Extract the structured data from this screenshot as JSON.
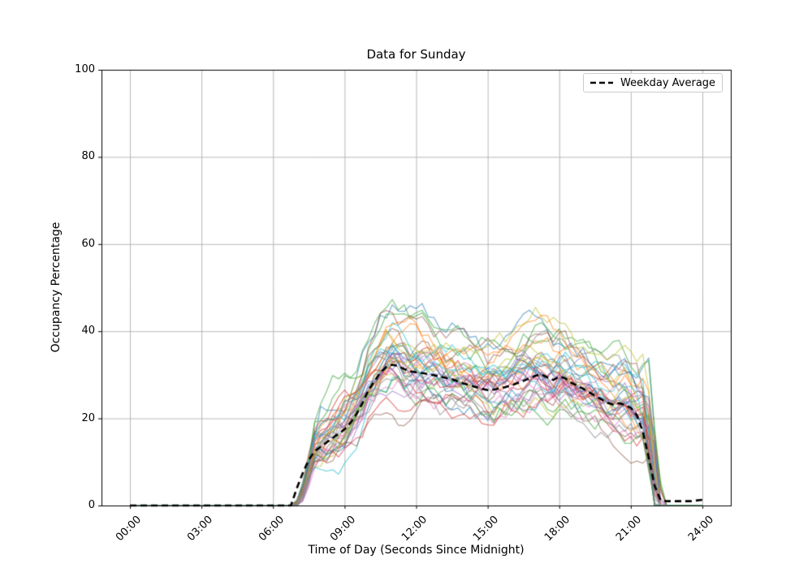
{
  "figure": {
    "background": "#ffffff"
  },
  "chart_data": {
    "type": "line",
    "title": "Data for Sunday",
    "xlabel": "Time of Day (Seconds Since Midnight)",
    "ylabel": "Occupancy Percentage",
    "xlim_hours": [
      -1.2,
      25.2
    ],
    "ylim": [
      0,
      100
    ],
    "grid": true,
    "grid_color": "#b0b0b0",
    "spine_color": "#000000",
    "x_ticks": [
      {
        "hour": 0,
        "label": "00:00"
      },
      {
        "hour": 3,
        "label": "03:00"
      },
      {
        "hour": 6,
        "label": "06:00"
      },
      {
        "hour": 9,
        "label": "09:00"
      },
      {
        "hour": 12,
        "label": "12:00"
      },
      {
        "hour": 15,
        "label": "15:00"
      },
      {
        "hour": 18,
        "label": "18:00"
      },
      {
        "hour": 21,
        "label": "21:00"
      },
      {
        "hour": 24,
        "label": "24:00"
      }
    ],
    "y_ticks": [
      0,
      20,
      40,
      60,
      80,
      100
    ],
    "legend": {
      "label": "Weekday Average",
      "position": "upper-right",
      "line_color": "#000000",
      "line_style": "dashed"
    },
    "average_series": {
      "name": "Weekday Average",
      "color": "#000000",
      "dash": [
        8,
        5
      ],
      "width": 2.6,
      "points": [
        [
          0,
          0
        ],
        [
          6.75,
          0
        ],
        [
          7,
          4
        ],
        [
          7.25,
          7.5
        ],
        [
          7.5,
          10.5
        ],
        [
          7.75,
          12.5
        ],
        [
          8,
          13.5
        ],
        [
          8.25,
          14.5
        ],
        [
          8.5,
          15.5
        ],
        [
          8.75,
          16.5
        ],
        [
          9,
          17.5
        ],
        [
          9.25,
          19
        ],
        [
          9.5,
          21
        ],
        [
          9.75,
          23.5
        ],
        [
          10,
          26.5
        ],
        [
          10.25,
          28.5
        ],
        [
          10.5,
          30.5
        ],
        [
          10.75,
          31.8
        ],
        [
          11,
          32.3
        ],
        [
          11.25,
          32
        ],
        [
          11.5,
          31.3
        ],
        [
          11.75,
          30.8
        ],
        [
          12,
          30.6
        ],
        [
          12.25,
          30.4
        ],
        [
          12.5,
          30.2
        ],
        [
          12.75,
          29.9
        ],
        [
          13,
          29.6
        ],
        [
          13.25,
          29.3
        ],
        [
          13.5,
          29
        ],
        [
          13.75,
          28.5
        ],
        [
          14,
          28
        ],
        [
          14.25,
          27.6
        ],
        [
          14.5,
          27.2
        ],
        [
          14.75,
          26.8
        ],
        [
          15,
          26.5
        ],
        [
          15.25,
          26.6
        ],
        [
          15.5,
          26.9
        ],
        [
          15.75,
          27.2
        ],
        [
          16,
          27.6
        ],
        [
          16.25,
          28.1
        ],
        [
          16.5,
          28.6
        ],
        [
          16.75,
          29.2
        ],
        [
          17,
          29.8
        ],
        [
          17.25,
          30.1
        ],
        [
          17.5,
          29.4
        ],
        [
          17.75,
          28.8
        ],
        [
          18,
          29.6
        ],
        [
          18.25,
          29.2
        ],
        [
          18.5,
          28.2
        ],
        [
          18.75,
          27.5
        ],
        [
          19,
          26.8
        ],
        [
          19.25,
          26
        ],
        [
          19.5,
          25.2
        ],
        [
          19.75,
          24.4
        ],
        [
          20,
          23.6
        ],
        [
          20.25,
          23.2
        ],
        [
          20.5,
          23.5
        ],
        [
          20.75,
          23.1
        ],
        [
          21,
          22.4
        ],
        [
          21.25,
          20.8
        ],
        [
          21.5,
          17
        ],
        [
          21.75,
          11
        ],
        [
          22,
          4.5
        ],
        [
          22.25,
          1.2
        ],
        [
          22.5,
          1
        ],
        [
          23,
          1
        ],
        [
          23.5,
          1
        ],
        [
          24,
          1.3
        ]
      ]
    },
    "samples": {
      "description": "Individual Sunday occupancy traces (semi-transparent, approximated)",
      "count": 40,
      "alpha": 0.55,
      "width": 1.3,
      "seed": 11,
      "step_hours": 0.25,
      "rise_start_hour": 6.8,
      "drop_end_hour": 22.2,
      "value_range": [
        0,
        53
      ],
      "colors": [
        "#1f77b4",
        "#ff7f0e",
        "#2ca02c",
        "#d62728",
        "#9467bd",
        "#8c564b",
        "#e377c2",
        "#7f7f7f",
        "#bcbd22",
        "#17becf"
      ]
    }
  }
}
